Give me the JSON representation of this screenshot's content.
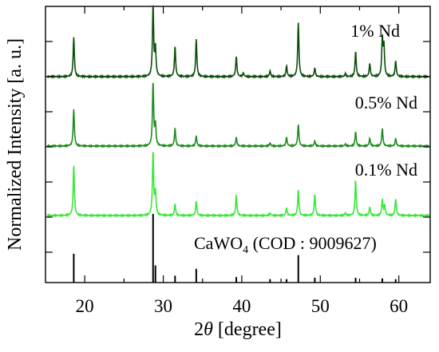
{
  "chart_data": {
    "type": "line",
    "xlabel_prefix": "2",
    "xlabel_var": "θ",
    "xlabel_suffix": " [degree]",
    "ylabel": "Normalized Intensity [a. u.]",
    "xlim": [
      15,
      64
    ],
    "xticks": [
      "20",
      "30",
      "40",
      "50",
      "60"
    ],
    "grid": false,
    "legend": "none",
    "series": [
      {
        "name": "1% Nd",
        "color": "#0a4d0a",
        "peaks": [
          [
            18.6,
            0.55
          ],
          [
            28.7,
            1.0
          ],
          [
            29.0,
            0.38
          ],
          [
            31.5,
            0.42
          ],
          [
            34.2,
            0.52
          ],
          [
            39.3,
            0.28
          ],
          [
            40.2,
            0.05
          ],
          [
            43.6,
            0.08
          ],
          [
            45.7,
            0.15
          ],
          [
            47.2,
            0.75
          ],
          [
            49.3,
            0.12
          ],
          [
            53.2,
            0.04
          ],
          [
            54.5,
            0.35
          ],
          [
            56.3,
            0.18
          ],
          [
            57.9,
            0.52
          ],
          [
            58.1,
            0.42
          ],
          [
            59.6,
            0.22
          ]
        ]
      },
      {
        "name": "0.5% Nd",
        "color": "#1f8a1f",
        "peaks": [
          [
            18.6,
            0.58
          ],
          [
            28.7,
            1.0
          ],
          [
            29.0,
            0.32
          ],
          [
            31.5,
            0.28
          ],
          [
            34.2,
            0.16
          ],
          [
            39.3,
            0.14
          ],
          [
            43.6,
            0.05
          ],
          [
            45.7,
            0.14
          ],
          [
            47.2,
            0.34
          ],
          [
            49.3,
            0.08
          ],
          [
            53.2,
            0.03
          ],
          [
            54.5,
            0.22
          ],
          [
            56.3,
            0.12
          ],
          [
            57.9,
            0.28
          ],
          [
            59.6,
            0.12
          ]
        ]
      },
      {
        "name": "0.1% Nd",
        "color": "#39e639",
        "peaks": [
          [
            18.6,
            0.78
          ],
          [
            28.7,
            1.0
          ],
          [
            29.0,
            0.35
          ],
          [
            31.5,
            0.18
          ],
          [
            34.2,
            0.22
          ],
          [
            39.3,
            0.32
          ],
          [
            43.6,
            0.04
          ],
          [
            45.7,
            0.12
          ],
          [
            47.2,
            0.4
          ],
          [
            49.3,
            0.33
          ],
          [
            53.2,
            0.04
          ],
          [
            54.5,
            0.55
          ],
          [
            56.3,
            0.13
          ],
          [
            57.9,
            0.24
          ],
          [
            58.2,
            0.16
          ],
          [
            59.6,
            0.26
          ]
        ]
      }
    ],
    "reference": {
      "name_prefix": "CaWO",
      "name_sub": "4",
      "name_suffix": " (COD : 9009627)",
      "color": "#000000",
      "lines": [
        [
          18.6,
          0.42
        ],
        [
          28.7,
          1.0
        ],
        [
          29.0,
          0.25
        ],
        [
          31.5,
          0.1
        ],
        [
          34.2,
          0.2
        ],
        [
          39.3,
          0.08
        ],
        [
          43.6,
          0.05
        ],
        [
          45.7,
          0.05
        ],
        [
          47.2,
          0.4
        ],
        [
          49.3,
          0.07
        ],
        [
          54.5,
          0.07
        ],
        [
          57.9,
          0.06
        ],
        [
          59.6,
          0.05
        ]
      ]
    }
  }
}
